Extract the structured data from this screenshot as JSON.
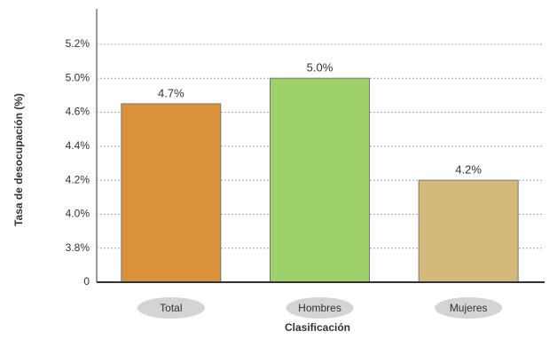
{
  "chart_data": {
    "type": "bar",
    "x_label": "Clasificación",
    "y_label": "Tasa de desocupación (%)",
    "categories": [
      "Total",
      "Hombres",
      "Mujeres"
    ],
    "values": [
      4.7,
      5.0,
      4.2
    ],
    "value_labels": [
      "4.7%",
      "5.0%",
      "4.2%"
    ],
    "colors": [
      "#d9923a",
      "#9fd16a",
      "#d5b97c"
    ],
    "ylim": [
      0,
      5.2
    ],
    "yticks": [
      0,
      {
        "value": 3.8,
        "label": "3.8%"
      },
      {
        "value": 4.0,
        "label": "4.0%"
      },
      {
        "value": 4.2,
        "label": "4.2%"
      },
      {
        "value": 4.4,
        "label": "4.4%"
      },
      {
        "value": 4.6,
        "label": "4.6%"
      },
      {
        "value": 5.0,
        "label": "5.0%"
      },
      {
        "value": 5.2,
        "label": "5.2%"
      }
    ],
    "grid": true
  }
}
